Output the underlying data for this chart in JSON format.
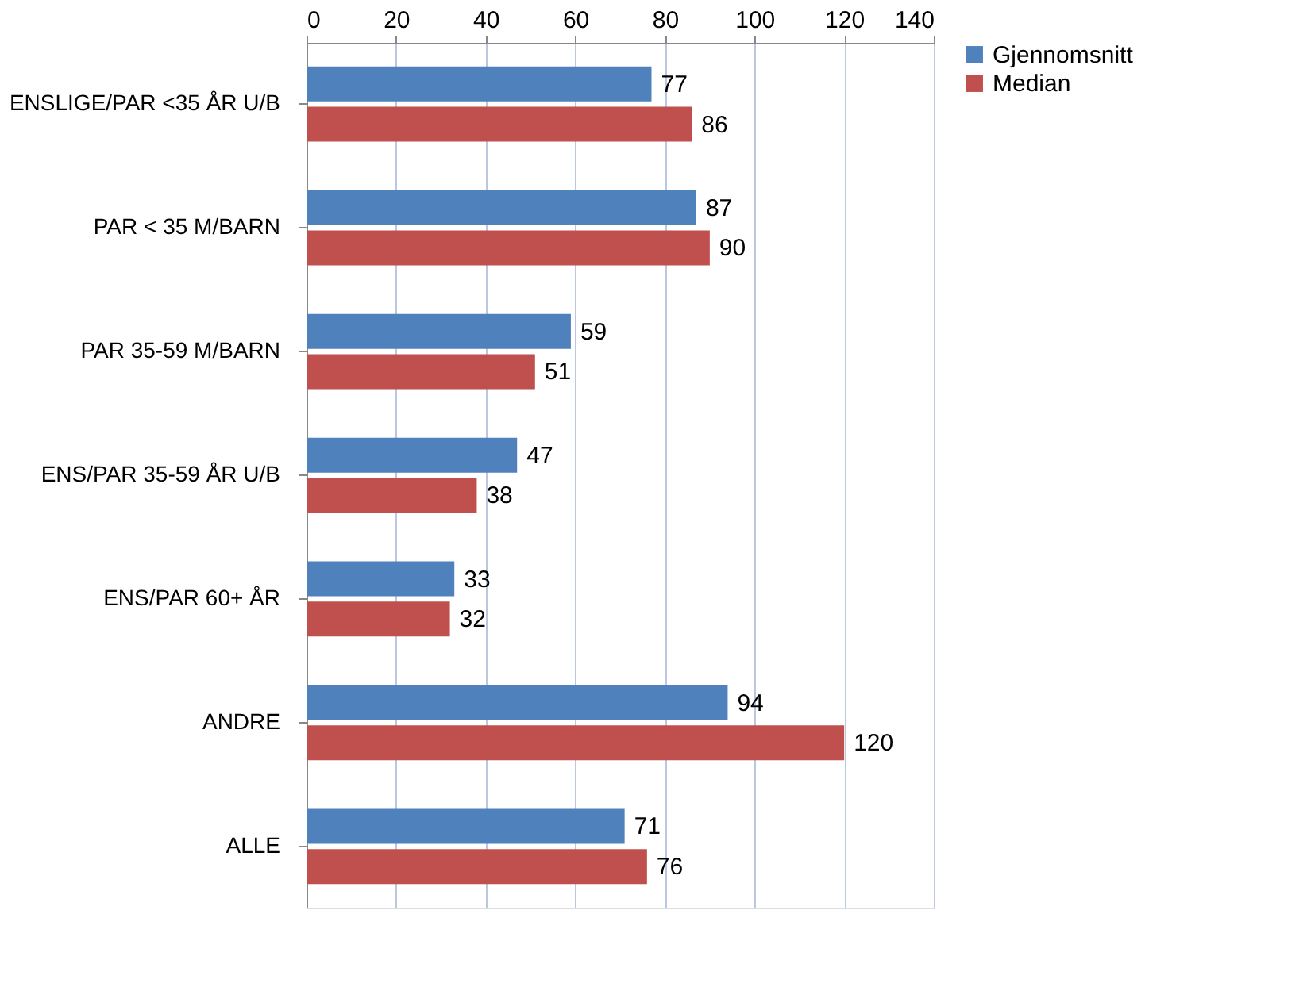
{
  "chart_data": {
    "type": "bar",
    "orientation": "horizontal",
    "categories": [
      "ENSLIGE/PAR <35 ÅR U/B",
      "PAR < 35 M/BARN",
      "PAR 35-59 M/BARN",
      "ENS/PAR 35-59 ÅR U/B",
      "ENS/PAR 60+ ÅR",
      "ANDRE",
      "ALLE"
    ],
    "series": [
      {
        "name": "Gjennomsnitt",
        "color": "#4f81bd",
        "values": [
          77,
          87,
          59,
          47,
          33,
          94,
          71
        ]
      },
      {
        "name": "Median",
        "color": "#c0504d",
        "values": [
          86,
          90,
          51,
          38,
          32,
          120,
          76
        ]
      }
    ],
    "xlim": [
      0,
      140
    ],
    "xticks": [
      0,
      20,
      40,
      60,
      80,
      100,
      120,
      140
    ],
    "grid": "x",
    "legend": "right",
    "data_labels": true
  }
}
